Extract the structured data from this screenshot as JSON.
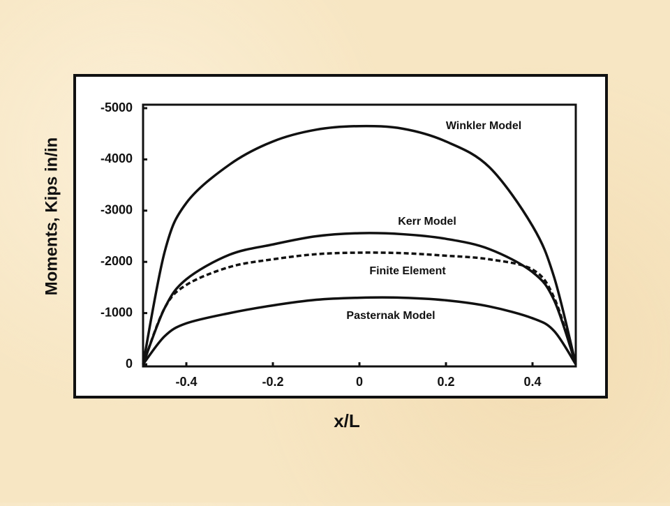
{
  "chart_data": {
    "type": "line",
    "x_label": "x/L",
    "y_label": "Moments, Kips in/in",
    "x": [
      -0.5,
      -0.45,
      -0.4,
      -0.3,
      -0.2,
      -0.1,
      0,
      0.1,
      0.2,
      0.3,
      0.4,
      0.45,
      0.5
    ],
    "series": [
      {
        "name": "Winkler Model",
        "color": "#111111",
        "style": "solid",
        "values": [
          0,
          -2200,
          -3150,
          -3900,
          -4350,
          -4580,
          -4650,
          -4600,
          -4350,
          -3850,
          -2700,
          -1700,
          0
        ]
      },
      {
        "name": "Kerr Model",
        "color": "#111111",
        "style": "solid",
        "values": [
          0,
          -1100,
          -1660,
          -2140,
          -2340,
          -2500,
          -2560,
          -2540,
          -2450,
          -2250,
          -1800,
          -1250,
          0
        ]
      },
      {
        "name": "Finite Element",
        "color": "#111111",
        "style": "dashed",
        "values": [
          0,
          -1100,
          -1550,
          -1900,
          -2050,
          -2150,
          -2180,
          -2170,
          -2120,
          -2050,
          -1850,
          -1300,
          0
        ]
      },
      {
        "name": "Pasternak Model",
        "color": "#111111",
        "style": "solid",
        "values": [
          0,
          -550,
          -800,
          -1000,
          -1150,
          -1260,
          -1300,
          -1300,
          -1250,
          -1130,
          -900,
          -650,
          0
        ]
      }
    ],
    "xlim": [
      -0.5,
      0.5
    ],
    "xticks": [
      -0.4,
      -0.2,
      0,
      0.2,
      0.4
    ],
    "ylim": [
      0,
      -5000
    ],
    "yticks": [
      0,
      -1000,
      -2000,
      -3000,
      -4000,
      -5000
    ]
  }
}
